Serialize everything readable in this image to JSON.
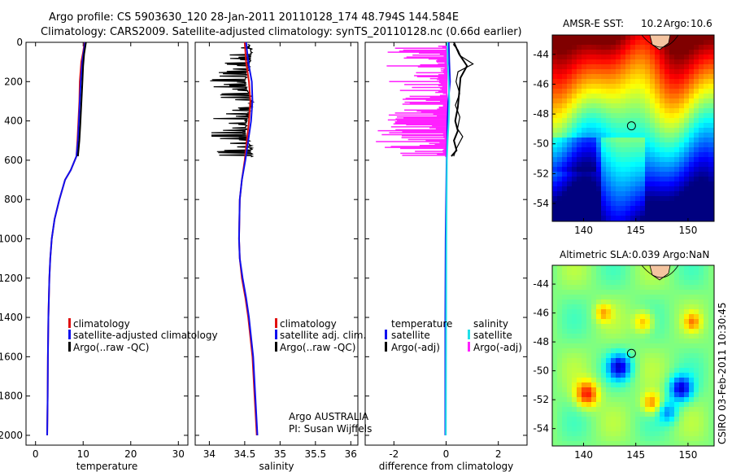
{
  "header": {
    "title_line1": "Argo profile: CS 5903630_120 28-Jan-2011 20110128_174 48.794S 144.584E",
    "title_line2": "Climatology: CARS2009. Satellite-adjusted climatology: synTS_20110128.nc (0.66d earlier)"
  },
  "footer": {
    "stamp": "CSIRO 03-Feb-2011 10:30:45",
    "float_owner": "Argo AUSTRALIA",
    "pi": "PI: Susan Wijffels"
  },
  "colors": {
    "climatology": "#e01010",
    "satellite": "#1010ee",
    "argo": "#000000",
    "satellite_diff": "#20e0e8",
    "argo_diff": "#ff20ff"
  },
  "chart_data": [
    {
      "type": "line",
      "id": "temperature-profile",
      "xlabel": "temperature",
      "ylabel": "",
      "xlim": [
        -2,
        32
      ],
      "ylim": [
        2050,
        0
      ],
      "xticks": [
        0,
        10,
        20,
        30
      ],
      "yticks": [
        0,
        200,
        400,
        600,
        800,
        1000,
        1200,
        1400,
        1600,
        1800,
        2000
      ],
      "legend": [
        "climatology",
        "satellite-adjusted climatology",
        "Argo(..raw -QC)"
      ],
      "legend_position": "lower-center",
      "series": [
        {
          "name": "climatology",
          "color": "#e01010",
          "x": [
            10.3,
            10.0,
            9.6,
            9.3,
            9.2,
            9.0,
            8.8,
            8.6,
            7.4,
            6.2,
            5.0,
            4.0,
            3.4,
            3.1,
            2.9,
            2.7,
            2.6,
            2.55,
            2.5,
            2.45
          ],
          "y": [
            0,
            50,
            100,
            200,
            300,
            400,
            500,
            580,
            650,
            700,
            800,
            900,
            1000,
            1100,
            1200,
            1400,
            1600,
            1800,
            1900,
            2000
          ]
        },
        {
          "name": "satellite-adjusted climatology",
          "color": "#1010ee",
          "x": [
            10.4,
            10.1,
            9.8,
            9.5,
            9.3,
            9.1,
            8.9,
            8.6,
            7.4,
            6.2,
            5.0,
            4.0,
            3.4,
            3.1,
            2.9,
            2.7,
            2.6,
            2.55,
            2.5,
            2.45
          ],
          "y": [
            0,
            50,
            100,
            200,
            300,
            400,
            500,
            580,
            650,
            700,
            800,
            900,
            1000,
            1100,
            1200,
            1400,
            1600,
            1800,
            1900,
            2000
          ]
        },
        {
          "name": "Argo(..raw -QC)",
          "color": "#000000",
          "x": [
            10.6,
            10.2,
            10.0,
            9.8,
            9.6,
            9.4,
            9.2,
            8.9
          ],
          "y": [
            0,
            60,
            120,
            220,
            320,
            420,
            500,
            580
          ]
        }
      ]
    },
    {
      "type": "line",
      "id": "salinity-profile",
      "xlabel": "salinity",
      "ylabel": "",
      "xlim": [
        33.8,
        36.1
      ],
      "ylim": [
        2050,
        0
      ],
      "xticks": [
        34,
        34.5,
        35,
        35.5,
        36
      ],
      "legend": [
        "climatology",
        "satellite adj. clim.",
        "Argo(..raw -QC)"
      ],
      "legend_position": "lower-right",
      "series": [
        {
          "name": "climatology",
          "color": "#e01010",
          "x": [
            34.5,
            34.52,
            34.56,
            34.58,
            34.56,
            34.53,
            34.5,
            34.46,
            34.43,
            34.42,
            34.43,
            34.46,
            34.51,
            34.55,
            34.58,
            34.61,
            34.64,
            34.67
          ],
          "y": [
            0,
            100,
            200,
            300,
            400,
            500,
            600,
            700,
            800,
            1000,
            1100,
            1200,
            1300,
            1400,
            1500,
            1600,
            1800,
            2000
          ]
        },
        {
          "name": "satellite adj. clim.",
          "color": "#1010ee",
          "x": [
            34.52,
            34.55,
            34.6,
            34.61,
            34.59,
            34.55,
            34.51,
            34.46,
            34.43,
            34.42,
            34.43,
            34.47,
            34.52,
            34.56,
            34.59,
            34.62,
            34.65,
            34.68
          ],
          "y": [
            0,
            100,
            200,
            300,
            400,
            500,
            600,
            700,
            800,
            1000,
            1100,
            1200,
            1300,
            1400,
            1500,
            1600,
            1800,
            2000
          ]
        }
      ]
    },
    {
      "type": "line",
      "id": "difference-profile",
      "xlabel": "difference from climatology",
      "ylabel": "",
      "xlim": [
        -3.1,
        3.1
      ],
      "ylim": [
        2050,
        0
      ],
      "xticks": [
        -2,
        0,
        2
      ],
      "legend_groups": [
        {
          "heading": "temperature",
          "entries": [
            "satellite",
            "Argo(-adj)"
          ]
        },
        {
          "heading": "salinity",
          "entries": [
            "satellite",
            "Argo(-adj)"
          ]
        }
      ],
      "legend_position": "lower-center",
      "series": [
        {
          "name": "temperature satellite",
          "color": "#1010ee",
          "x": [
            0.1,
            0.12,
            0.15,
            0.08,
            0.05,
            0.04,
            0.02,
            0.0,
            -0.02,
            -0.03,
            -0.03,
            -0.03
          ],
          "y": [
            0,
            100,
            200,
            300,
            400,
            500,
            600,
            800,
            1000,
            1400,
            1800,
            2000
          ]
        },
        {
          "name": "salinity satellite",
          "color": "#20e0e8",
          "x": [
            0.05,
            0.06,
            0.1,
            0.12,
            0.1,
            0.06,
            0.03,
            0.01,
            0.0,
            -0.01
          ],
          "y": [
            0,
            100,
            200,
            300,
            400,
            500,
            600,
            1000,
            1500,
            2000
          ]
        },
        {
          "name": "temperature Argo(-adj)",
          "color": "#000000",
          "x": [
            0.3,
            0.5,
            0.8,
            0.55,
            0.5,
            0.45,
            0.35,
            0.45,
            0.3,
            0.4,
            0.2
          ],
          "y": [
            0,
            60,
            120,
            180,
            260,
            330,
            400,
            450,
            500,
            550,
            580
          ]
        }
      ]
    },
    {
      "type": "heatmap",
      "id": "sst-map",
      "title_label": "AMSR-E SST:",
      "title_value": "10.2",
      "argo_label": "Argo:",
      "argo_value": "10.6",
      "xlim": [
        137,
        152.5
      ],
      "ylim": [
        -55.2,
        -42.7
      ],
      "xticks": [
        140,
        145,
        150
      ],
      "yticks": [
        -44,
        -46,
        -48,
        -50,
        -52,
        -54
      ],
      "marker": {
        "lon": 144.584,
        "lat": -48.794
      }
    },
    {
      "type": "heatmap",
      "id": "sla-map",
      "title_label": "Altimetric SLA:",
      "title_value": "0.039",
      "argo_label": "Argo:",
      "argo_value": "NaN",
      "xlim": [
        137,
        152.5
      ],
      "ylim": [
        -55.2,
        -42.7
      ],
      "xticks": [
        140,
        145,
        150
      ],
      "yticks": [
        -44,
        -46,
        -48,
        -50,
        -52,
        -54
      ],
      "marker": {
        "lon": 144.584,
        "lat": -48.794
      }
    }
  ]
}
